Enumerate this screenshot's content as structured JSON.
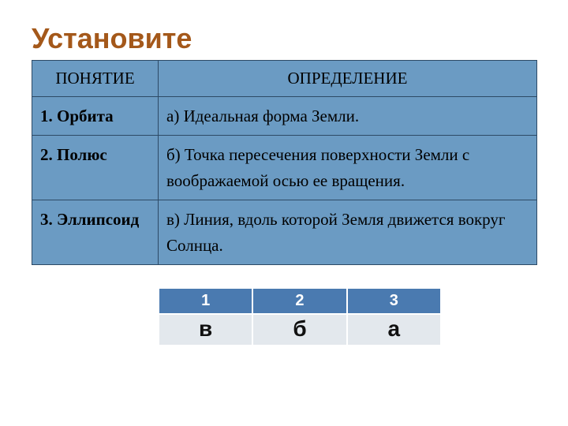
{
  "title": "Установите",
  "main_table": {
    "columns": [
      "ПОНЯТИЕ",
      "ОПРЕДЕЛЕНИЕ"
    ],
    "rows": [
      {
        "term": "1. Орбита",
        "definition": "а)    Идеальная форма Земли."
      },
      {
        "term": "2. Полюс",
        "definition": "б) Точка пересечения поверхности Земли с воображаемой осью ее вращения."
      },
      {
        "term": "3. Эллипсоид",
        "definition": "в) Линия, вдоль которой Земля движется вокруг Солнца."
      }
    ],
    "border_color": "#2d4a66",
    "cell_background": "#6b9bc3",
    "font_size": 21
  },
  "answer_table": {
    "headers": [
      "1",
      "2",
      "3"
    ],
    "values": [
      "в",
      "б",
      "а"
    ],
    "header_background": "#4a7ab0",
    "header_color": "#ffffff",
    "value_background": "#e3e8ed",
    "value_color": "#111111",
    "border_color": "#ffffff",
    "header_font_size": 20,
    "value_font_size": 28
  },
  "colors": {
    "title": "#a4581a",
    "page_background": "#ffffff"
  }
}
